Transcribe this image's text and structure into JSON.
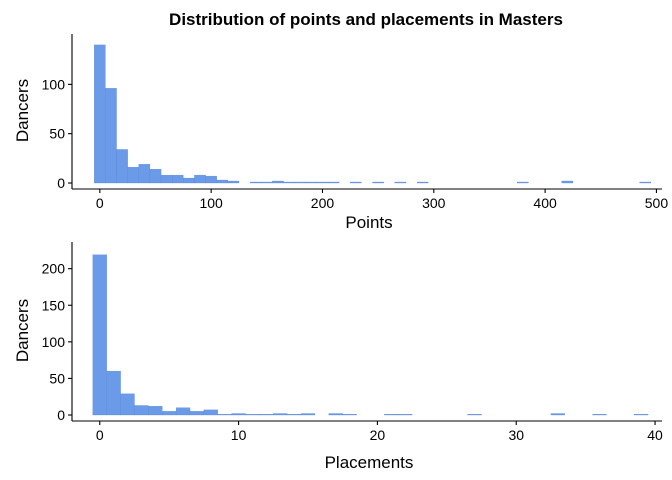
{
  "figure": {
    "title": "Distribution of points and placements in Masters"
  },
  "colors": {
    "bar_fill": "#6a9ae8",
    "bar_stroke": "#5585d8"
  },
  "chart_data": [
    {
      "type": "bar",
      "subtype": "histogram",
      "title": "Distribution of points and placements in Masters",
      "xlabel": "Points",
      "ylabel": "Dancers",
      "xlim": [
        -25,
        505
      ],
      "ylim": [
        0,
        147
      ],
      "xticks": [
        0,
        100,
        200,
        300,
        400,
        500
      ],
      "yticks": [
        0,
        50,
        100
      ],
      "bin_width": 10,
      "bins": [
        {
          "x0": -5,
          "x1": 5,
          "count": 140
        },
        {
          "x0": 5,
          "x1": 15,
          "count": 96
        },
        {
          "x0": 15,
          "x1": 25,
          "count": 34
        },
        {
          "x0": 25,
          "x1": 35,
          "count": 16
        },
        {
          "x0": 35,
          "x1": 45,
          "count": 19
        },
        {
          "x0": 45,
          "x1": 55,
          "count": 14
        },
        {
          "x0": 55,
          "x1": 65,
          "count": 8
        },
        {
          "x0": 65,
          "x1": 75,
          "count": 8
        },
        {
          "x0": 75,
          "x1": 85,
          "count": 5
        },
        {
          "x0": 85,
          "x1": 95,
          "count": 8
        },
        {
          "x0": 95,
          "x1": 105,
          "count": 7
        },
        {
          "x0": 105,
          "x1": 115,
          "count": 3
        },
        {
          "x0": 115,
          "x1": 125,
          "count": 2
        },
        {
          "x0": 135,
          "x1": 145,
          "count": 1
        },
        {
          "x0": 145,
          "x1": 155,
          "count": 1
        },
        {
          "x0": 155,
          "x1": 165,
          "count": 2
        },
        {
          "x0": 165,
          "x1": 175,
          "count": 1
        },
        {
          "x0": 175,
          "x1": 185,
          "count": 1
        },
        {
          "x0": 185,
          "x1": 195,
          "count": 1
        },
        {
          "x0": 195,
          "x1": 205,
          "count": 1
        },
        {
          "x0": 205,
          "x1": 215,
          "count": 1
        },
        {
          "x0": 225,
          "x1": 235,
          "count": 1
        },
        {
          "x0": 245,
          "x1": 255,
          "count": 1
        },
        {
          "x0": 265,
          "x1": 275,
          "count": 1
        },
        {
          "x0": 285,
          "x1": 295,
          "count": 1
        },
        {
          "x0": 375,
          "x1": 385,
          "count": 1
        },
        {
          "x0": 415,
          "x1": 425,
          "count": 2
        },
        {
          "x0": 485,
          "x1": 495,
          "count": 1
        }
      ],
      "grid": false,
      "legend": "none"
    },
    {
      "type": "bar",
      "subtype": "histogram",
      "xlabel": "Placements",
      "ylabel": "Dancers",
      "xlim": [
        -2,
        40.5
      ],
      "ylim": [
        0,
        231
      ],
      "xticks": [
        0,
        10,
        20,
        30,
        40
      ],
      "yticks": [
        0,
        50,
        100,
        150,
        200
      ],
      "bin_width": 1,
      "bins": [
        {
          "x0": -0.5,
          "x1": 0.5,
          "count": 219
        },
        {
          "x0": 0.5,
          "x1": 1.5,
          "count": 60
        },
        {
          "x0": 1.5,
          "x1": 2.5,
          "count": 29
        },
        {
          "x0": 2.5,
          "x1": 3.5,
          "count": 13
        },
        {
          "x0": 3.5,
          "x1": 4.5,
          "count": 12
        },
        {
          "x0": 4.5,
          "x1": 5.5,
          "count": 5
        },
        {
          "x0": 5.5,
          "x1": 6.5,
          "count": 10
        },
        {
          "x0": 6.5,
          "x1": 7.5,
          "count": 5
        },
        {
          "x0": 7.5,
          "x1": 8.5,
          "count": 7
        },
        {
          "x0": 8.5,
          "x1": 9.5,
          "count": 1
        },
        {
          "x0": 9.5,
          "x1": 10.5,
          "count": 2
        },
        {
          "x0": 10.5,
          "x1": 11.5,
          "count": 1
        },
        {
          "x0": 11.5,
          "x1": 12.5,
          "count": 1
        },
        {
          "x0": 12.5,
          "x1": 13.5,
          "count": 2
        },
        {
          "x0": 13.5,
          "x1": 14.5,
          "count": 1
        },
        {
          "x0": 14.5,
          "x1": 15.5,
          "count": 2
        },
        {
          "x0": 16.5,
          "x1": 17.5,
          "count": 2
        },
        {
          "x0": 17.5,
          "x1": 18.5,
          "count": 1
        },
        {
          "x0": 20.5,
          "x1": 21.5,
          "count": 1
        },
        {
          "x0": 21.5,
          "x1": 22.5,
          "count": 1
        },
        {
          "x0": 26.5,
          "x1": 27.5,
          "count": 1
        },
        {
          "x0": 32.5,
          "x1": 33.5,
          "count": 2
        },
        {
          "x0": 35.5,
          "x1": 36.5,
          "count": 1
        },
        {
          "x0": 38.5,
          "x1": 39.5,
          "count": 1
        }
      ],
      "grid": false,
      "legend": "none"
    }
  ]
}
